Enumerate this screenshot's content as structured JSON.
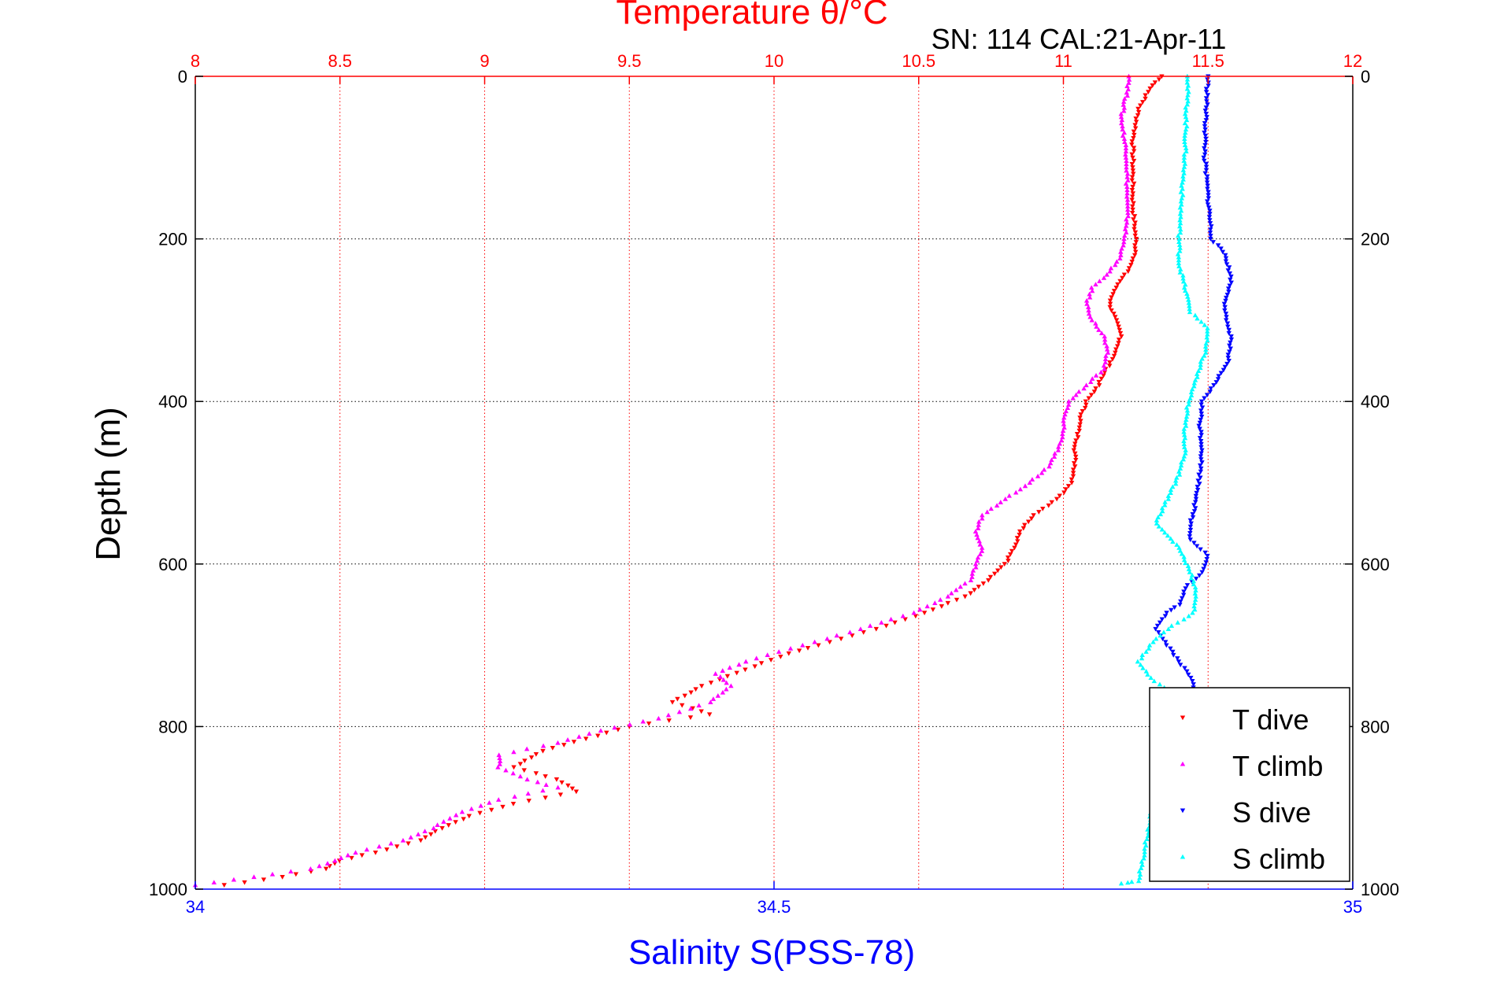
{
  "chart_data": {
    "type": "scatter",
    "title": "Temperature θ/°C",
    "subtitle": "SN: 114  CAL:21-Apr-11",
    "xlabel_top": "Temperature θ/°C",
    "xlabel_bottom": "Salinity S(PSS-78)",
    "ylabel": "Depth (m)",
    "x_top": {
      "range": [
        8,
        12
      ],
      "ticks": [
        8,
        8.5,
        9,
        9.5,
        10,
        10.5,
        11,
        11.5,
        12
      ],
      "tick_labels": [
        "8",
        "8.5",
        "9",
        "9.5",
        "10",
        "10.5",
        "11",
        "11.5",
        "12"
      ],
      "color": "#ff0000"
    },
    "x_bottom": {
      "range": [
        34,
        35
      ],
      "ticks": [
        34,
        34.5,
        35
      ],
      "tick_labels": [
        "34",
        "34.5",
        "35"
      ],
      "color": "#0000ff"
    },
    "y": {
      "range": [
        0,
        1000
      ],
      "reversed": true,
      "ticks": [
        0,
        200,
        400,
        600,
        800,
        1000
      ],
      "tick_labels": [
        "0",
        "200",
        "400",
        "600",
        "800",
        "1000"
      ]
    },
    "grid": {
      "vertical": "top-axis ticks, red dotted",
      "horizontal": "depth ticks, black dotted"
    },
    "legend_position": "bottom-right",
    "series": [
      {
        "name": "T dive",
        "axis": "top",
        "color": "#ff0000",
        "marker": "triangle-down",
        "points": [
          [
            11.34,
            0
          ],
          [
            11.3,
            15
          ],
          [
            11.26,
            40
          ],
          [
            11.24,
            80
          ],
          [
            11.24,
            120
          ],
          [
            11.24,
            160
          ],
          [
            11.25,
            200
          ],
          [
            11.25,
            220
          ],
          [
            11.22,
            240
          ],
          [
            11.18,
            260
          ],
          [
            11.16,
            280
          ],
          [
            11.18,
            300
          ],
          [
            11.2,
            320
          ],
          [
            11.18,
            340
          ],
          [
            11.15,
            360
          ],
          [
            11.12,
            380
          ],
          [
            11.08,
            400
          ],
          [
            11.06,
            420
          ],
          [
            11.05,
            440
          ],
          [
            11.04,
            460
          ],
          [
            11.04,
            480
          ],
          [
            11.03,
            500
          ],
          [
            10.98,
            520
          ],
          [
            10.9,
            540
          ],
          [
            10.85,
            560
          ],
          [
            10.83,
            580
          ],
          [
            10.8,
            600
          ],
          [
            10.74,
            620
          ],
          [
            10.66,
            640
          ],
          [
            10.52,
            660
          ],
          [
            10.35,
            680
          ],
          [
            10.15,
            700
          ],
          [
            10.05,
            710
          ],
          [
            9.9,
            730
          ],
          [
            9.75,
            750
          ],
          [
            9.65,
            770
          ],
          [
            9.78,
            785
          ],
          [
            9.5,
            800
          ],
          [
            9.35,
            815
          ],
          [
            9.2,
            830
          ],
          [
            9.1,
            850
          ],
          [
            9.25,
            865
          ],
          [
            9.32,
            880
          ],
          [
            9.1,
            895
          ],
          [
            8.95,
            910
          ],
          [
            8.85,
            925
          ],
          [
            8.78,
            940
          ],
          [
            8.62,
            955
          ],
          [
            8.5,
            965
          ],
          [
            8.45,
            975
          ],
          [
            8.3,
            985
          ],
          [
            8.1,
            995
          ]
        ]
      },
      {
        "name": "T climb",
        "axis": "top",
        "color": "#ff00ff",
        "marker": "triangle-up",
        "points": [
          [
            11.23,
            0
          ],
          [
            11.22,
            20
          ],
          [
            11.2,
            50
          ],
          [
            11.22,
            100
          ],
          [
            11.22,
            140
          ],
          [
            11.22,
            180
          ],
          [
            11.2,
            220
          ],
          [
            11.16,
            240
          ],
          [
            11.1,
            260
          ],
          [
            11.08,
            280
          ],
          [
            11.1,
            300
          ],
          [
            11.14,
            320
          ],
          [
            11.15,
            340
          ],
          [
            11.14,
            360
          ],
          [
            11.08,
            380
          ],
          [
            11.02,
            400
          ],
          [
            11.0,
            420
          ],
          [
            11.0,
            440
          ],
          [
            10.98,
            460
          ],
          [
            10.95,
            480
          ],
          [
            10.88,
            500
          ],
          [
            10.8,
            520
          ],
          [
            10.72,
            540
          ],
          [
            10.7,
            560
          ],
          [
            10.72,
            580
          ],
          [
            10.7,
            600
          ],
          [
            10.68,
            620
          ],
          [
            10.6,
            640
          ],
          [
            10.48,
            660
          ],
          [
            10.3,
            680
          ],
          [
            10.1,
            700
          ],
          [
            9.9,
            720
          ],
          [
            9.8,
            735
          ],
          [
            9.85,
            750
          ],
          [
            9.78,
            770
          ],
          [
            9.6,
            790
          ],
          [
            9.4,
            805
          ],
          [
            9.25,
            820
          ],
          [
            9.05,
            835
          ],
          [
            9.05,
            850
          ],
          [
            9.15,
            865
          ],
          [
            9.25,
            875
          ],
          [
            9.05,
            890
          ],
          [
            8.92,
            905
          ],
          [
            8.82,
            925
          ],
          [
            8.72,
            940
          ],
          [
            8.55,
            955
          ],
          [
            8.48,
            965
          ],
          [
            8.4,
            975
          ],
          [
            8.2,
            985
          ],
          [
            8.0,
            995
          ]
        ]
      },
      {
        "name": "S dive",
        "axis": "bottom",
        "color": "#0000ff",
        "marker": "triangle-down",
        "points": [
          [
            34.875,
            0
          ],
          [
            34.873,
            50
          ],
          [
            34.872,
            100
          ],
          [
            34.875,
            150
          ],
          [
            34.878,
            200
          ],
          [
            34.89,
            220
          ],
          [
            34.895,
            250
          ],
          [
            34.89,
            280
          ],
          [
            34.89,
            300
          ],
          [
            34.895,
            320
          ],
          [
            34.892,
            350
          ],
          [
            34.88,
            380
          ],
          [
            34.87,
            400
          ],
          [
            34.868,
            430
          ],
          [
            34.87,
            460
          ],
          [
            34.868,
            490
          ],
          [
            34.865,
            520
          ],
          [
            34.86,
            550
          ],
          [
            34.86,
            570
          ],
          [
            34.875,
            590
          ],
          [
            34.87,
            610
          ],
          [
            34.855,
            630
          ],
          [
            34.85,
            650
          ],
          [
            34.84,
            660
          ],
          [
            34.83,
            680
          ],
          [
            34.84,
            700
          ],
          [
            34.85,
            720
          ],
          [
            34.86,
            740
          ],
          [
            34.865,
            760
          ],
          [
            34.84,
            780
          ]
        ]
      },
      {
        "name": "S climb",
        "axis": "bottom",
        "color": "#00ffff",
        "marker": "triangle-up",
        "points": [
          [
            34.858,
            0
          ],
          [
            34.856,
            50
          ],
          [
            34.855,
            100
          ],
          [
            34.852,
            150
          ],
          [
            34.85,
            200
          ],
          [
            34.85,
            230
          ],
          [
            34.855,
            260
          ],
          [
            34.86,
            290
          ],
          [
            34.875,
            310
          ],
          [
            34.872,
            340
          ],
          [
            34.865,
            370
          ],
          [
            34.858,
            400
          ],
          [
            34.855,
            430
          ],
          [
            34.855,
            460
          ],
          [
            34.85,
            490
          ],
          [
            34.84,
            520
          ],
          [
            34.83,
            550
          ],
          [
            34.85,
            580
          ],
          [
            34.86,
            610
          ],
          [
            34.865,
            640
          ],
          [
            34.862,
            660
          ],
          [
            34.84,
            680
          ],
          [
            34.825,
            700
          ],
          [
            34.815,
            720
          ],
          [
            34.825,
            740
          ],
          [
            34.845,
            760
          ],
          [
            34.815,
            990
          ],
          [
            34.8,
            993
          ]
        ]
      }
    ]
  }
}
